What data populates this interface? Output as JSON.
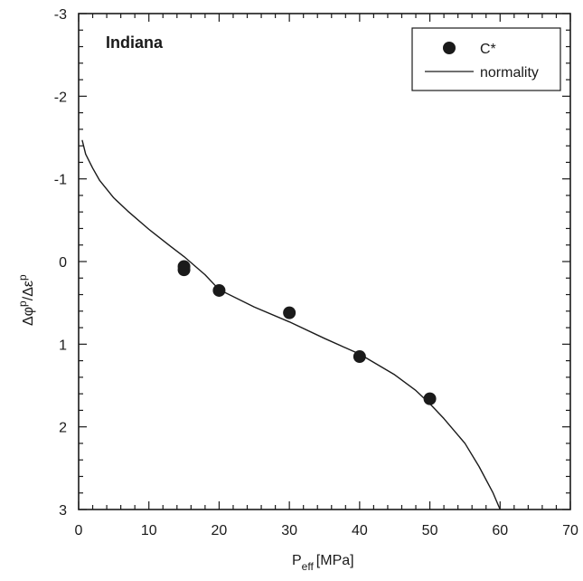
{
  "chart_data": {
    "type": "scatter",
    "title": "Indiana",
    "xlabel": {
      "main": "P",
      "sub": "eff",
      "unit": "[MPa]"
    },
    "ylabel": {
      "parts": [
        "Δφ",
        "p",
        "/Δε",
        "p"
      ]
    },
    "xlim": [
      0,
      70
    ],
    "ylim": [
      3,
      -3
    ],
    "y_axis_inverted": true,
    "x_ticks": [
      "0",
      "10",
      "20",
      "30",
      "40",
      "50",
      "60",
      "70"
    ],
    "y_ticks": [
      "-3",
      "-2",
      "-1",
      "0",
      "1",
      "2",
      "3"
    ],
    "grid": false,
    "legend": {
      "position": "top-right",
      "entries": [
        "C*",
        "normality"
      ]
    },
    "series": [
      {
        "name": "C*",
        "kind": "points",
        "x": [
          15,
          15,
          20,
          30,
          40,
          50
        ],
        "y": [
          0.06,
          0.1,
          0.35,
          0.62,
          1.15,
          1.66
        ]
      },
      {
        "name": "normality",
        "kind": "line",
        "x": [
          0.5,
          1,
          2,
          3,
          5,
          7,
          10,
          13,
          15,
          18,
          20,
          25,
          30,
          35,
          40,
          45,
          48,
          50,
          52,
          55,
          57,
          59,
          60
        ],
        "y": [
          -1.47,
          -1.3,
          -1.13,
          -0.98,
          -0.77,
          -0.61,
          -0.39,
          -0.19,
          -0.06,
          0.16,
          0.34,
          0.55,
          0.73,
          0.93,
          1.12,
          1.37,
          1.56,
          1.72,
          1.9,
          2.2,
          2.48,
          2.8,
          3.0
        ]
      }
    ]
  }
}
